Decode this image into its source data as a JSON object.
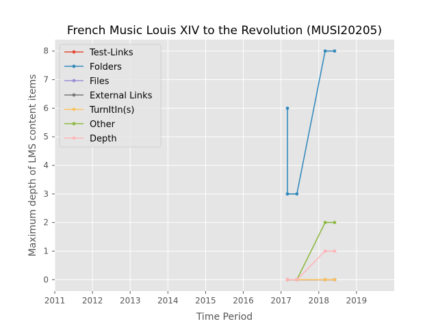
{
  "chart_data": {
    "type": "line",
    "title": "French Music Louis XIV to the Revolution (MUSI20205)",
    "xlabel": "Time Period",
    "ylabel": "Maximum depth of LMS content items",
    "xlim": [
      2011,
      2020
    ],
    "ylim": [
      -0.4,
      8.4
    ],
    "x_ticks": [
      "2011",
      "2012",
      "2013",
      "2014",
      "2015",
      "2016",
      "2017",
      "2018",
      "2019"
    ],
    "y_ticks": [
      "0",
      "1",
      "2",
      "3",
      "4",
      "5",
      "6",
      "7",
      "8"
    ],
    "grid": true,
    "legend_position": "upper-left",
    "series": [
      {
        "name": "Test-Links",
        "color": "#e24a33",
        "x": [
          2017.17,
          2017.17,
          2017.17,
          2017.42,
          2018.17,
          2018.42
        ],
        "y": [
          0,
          0,
          0,
          0,
          0,
          0
        ]
      },
      {
        "name": "Folders",
        "color": "#348abd",
        "x": [
          2017.17,
          2017.17,
          2017.17,
          2017.42,
          2018.17,
          2018.42
        ],
        "y": [
          6,
          3,
          3,
          3,
          8,
          8
        ]
      },
      {
        "name": "Files",
        "color": "#988ed5",
        "x": [
          2017.17,
          2017.17,
          2017.17,
          2017.42,
          2018.17,
          2018.42
        ],
        "y": [
          0,
          0,
          0,
          0,
          0,
          0
        ]
      },
      {
        "name": "External Links",
        "color": "#777777",
        "x": [
          2017.17,
          2017.17,
          2017.17,
          2017.42,
          2018.17,
          2018.42
        ],
        "y": [
          0,
          0,
          0,
          0,
          0,
          0
        ]
      },
      {
        "name": "TurnItIn(s)",
        "color": "#fbc15e",
        "x": [
          2017.17,
          2017.17,
          2017.17,
          2017.42,
          2018.17,
          2018.42
        ],
        "y": [
          0,
          0,
          0,
          0,
          0,
          0
        ]
      },
      {
        "name": "Other",
        "color": "#8eba42",
        "x": [
          2017.17,
          2017.17,
          2017.17,
          2017.42,
          2018.17,
          2018.42
        ],
        "y": [
          0,
          0,
          0,
          0,
          2,
          2
        ]
      },
      {
        "name": "Depth",
        "color": "#ffb5b8",
        "x": [
          2017.17,
          2017.17,
          2017.17,
          2017.42,
          2018.17,
          2018.42
        ],
        "y": [
          0,
          0,
          0,
          0,
          1,
          1
        ]
      }
    ]
  }
}
